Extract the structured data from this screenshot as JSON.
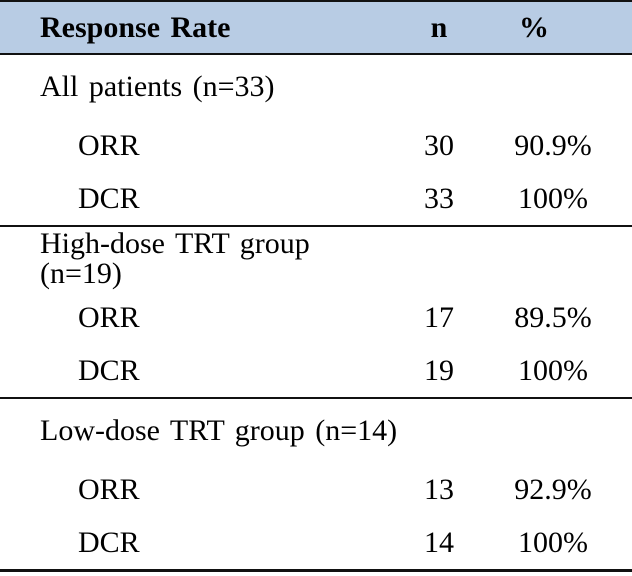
{
  "chart_data": {
    "type": "table",
    "title": "Response Rate",
    "columns": [
      "Response Rate",
      "n",
      "%"
    ],
    "sections": [
      {
        "label": "All patients (n=33)",
        "rows": [
          {
            "label": "ORR",
            "n": "30",
            "percent": "90.9%"
          },
          {
            "label": "DCR",
            "n": "33",
            "percent": "100%"
          }
        ]
      },
      {
        "label": "High-dose TRT group (n=19)",
        "rows": [
          {
            "label": "ORR",
            "n": "17",
            "percent": "89.5%"
          },
          {
            "label": "DCR",
            "n": "19",
            "percent": "100%"
          }
        ]
      },
      {
        "label": "Low-dose TRT group (n=14)",
        "rows": [
          {
            "label": "ORR",
            "n": "13",
            "percent": "92.9%"
          },
          {
            "label": "DCR",
            "n": "14",
            "percent": "100%"
          }
        ]
      }
    ],
    "layout": {
      "grid": "off",
      "header_style": "shaded band with top and bottom rules",
      "section_dividers": "horizontal rules between dose groups"
    }
  },
  "colors": {
    "header_bg": "#b8cce4",
    "border": "#111111",
    "text": "#000000",
    "page_bg": "#ffffff"
  }
}
